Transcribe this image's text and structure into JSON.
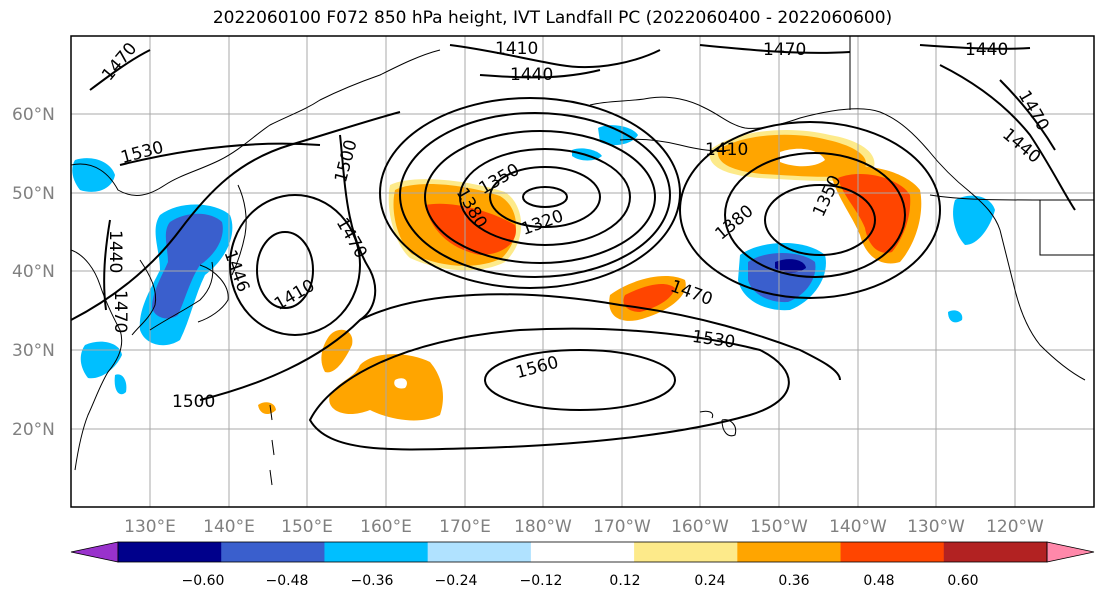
{
  "title": "2022060100 F072 850 hPa height, IVT Landfall PC (2022060400 - 2022060600)",
  "lat_labels": [
    "60°N",
    "50°N",
    "40°N",
    "30°N",
    "20°N"
  ],
  "lon_labels": [
    "130°E",
    "140°E",
    "150°E",
    "160°E",
    "170°E",
    "180°W",
    "170°W",
    "160°W",
    "150°W",
    "140°W",
    "130°W",
    "120°W"
  ],
  "contour_labels": [
    "1470",
    "1410",
    "1440",
    "1470",
    "1440",
    "1470",
    "1440",
    "1530",
    "1500",
    "1350",
    "1320",
    "1410",
    "1380",
    "1350",
    "1380",
    "1470",
    "1410",
    "1446",
    "1440",
    "1470",
    "1470",
    "1530",
    "1560",
    "1500"
  ],
  "colorbar": {
    "ticks": [
      "−0.60",
      "−0.48",
      "−0.36",
      "−0.24",
      "−0.12",
      "0.12",
      "0.24",
      "0.36",
      "0.48",
      "0.60"
    ],
    "colors": [
      "#9932cc",
      "#00008b",
      "#3a5fcd",
      "#00bfff",
      "#b0e2ff",
      "#ffffff",
      "#fdea8a",
      "#ffa500",
      "#ff4500",
      "#b22222",
      "#ff88aa"
    ]
  }
}
